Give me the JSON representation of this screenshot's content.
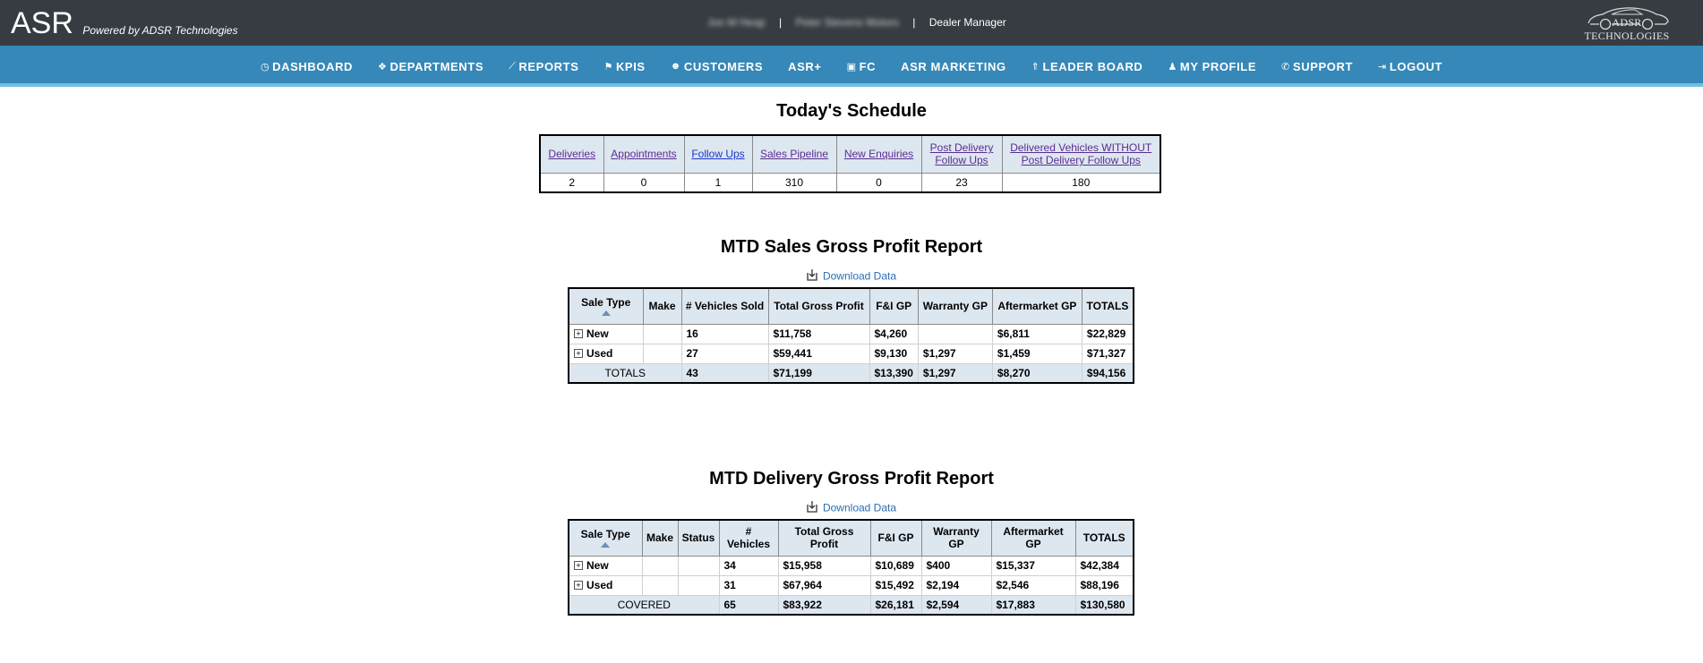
{
  "header": {
    "brand": "ASR",
    "powered_by": "Powered by ADSR Technologies",
    "user_name": "Jon M Heap",
    "dealer_name": "Peter Stevens Motors",
    "separator": "|",
    "role": "Dealer Manager",
    "logo_text": "ADSR TECHNOLOGIES"
  },
  "nav": {
    "items": [
      {
        "label": "DASHBOARD",
        "icon": "dashboard-icon",
        "glyph": "◷"
      },
      {
        "label": "DEPARTMENTS",
        "icon": "cubes-icon",
        "glyph": "❖"
      },
      {
        "label": "REPORTS",
        "icon": "line-chart-icon",
        "glyph": "⟋"
      },
      {
        "label": "KPIS",
        "icon": "flag-icon",
        "glyph": "⚑"
      },
      {
        "label": "CUSTOMERS",
        "icon": "users-icon",
        "glyph": "☻"
      },
      {
        "label": "ASR+",
        "icon": "",
        "glyph": ""
      },
      {
        "label": "FC",
        "icon": "camera-icon",
        "glyph": "▣"
      },
      {
        "label": "ASR MARKETING",
        "icon": "",
        "glyph": ""
      },
      {
        "label": "LEADER BOARD",
        "icon": "thumbtack-icon",
        "glyph": "⇑"
      },
      {
        "label": "MY PROFILE",
        "icon": "user-icon",
        "glyph": "♟"
      },
      {
        "label": "SUPPORT",
        "icon": "phone-icon",
        "glyph": "✆"
      },
      {
        "label": "LOGOUT",
        "icon": "sign-out-icon",
        "glyph": "⇥"
      }
    ]
  },
  "schedule": {
    "title": "Today's Schedule",
    "columns": [
      "Deliveries",
      "Appointments",
      "Follow Ups",
      "Sales Pipeline",
      "New Enquiries",
      "Post Delivery Follow Ups",
      "Delivered Vehicles WITHOUT Post Delivery Follow Ups"
    ],
    "values": [
      "2",
      "0",
      "1",
      "310",
      "0",
      "23",
      "180"
    ]
  },
  "sales_report": {
    "title": "MTD Sales Gross Profit Report",
    "download_label": "Download Data",
    "headers": [
      "Sale Type",
      "Make",
      "# Vehicles Sold",
      "Total Gross Profit",
      "F&I GP",
      "Warranty GP",
      "Aftermarket GP",
      "TOTALS"
    ],
    "rows": [
      {
        "type": "New",
        "make": "",
        "vehicles": "16",
        "total_gp": "$11,758",
        "fi_gp": "$4,260",
        "warranty_gp": "",
        "aftermarket_gp": "$6,811",
        "totals": "$22,829"
      },
      {
        "type": "Used",
        "make": "",
        "vehicles": "27",
        "total_gp": "$59,441",
        "fi_gp": "$9,130",
        "warranty_gp": "$1,297",
        "aftermarket_gp": "$1,459",
        "totals": "$71,327"
      }
    ],
    "total_row": {
      "label": "TOTALS",
      "vehicles": "43",
      "total_gp": "$71,199",
      "fi_gp": "$13,390",
      "warranty_gp": "$1,297",
      "aftermarket_gp": "$8,270",
      "totals": "$94,156"
    }
  },
  "delivery_report": {
    "title": "MTD Delivery Gross Profit Report",
    "download_label": "Download Data",
    "headers": [
      "Sale Type",
      "Make",
      "Status",
      "# Vehicles",
      "Total Gross Profit",
      "F&I GP",
      "Warranty GP",
      "Aftermarket GP",
      "TOTALS"
    ],
    "rows": [
      {
        "type": "New",
        "make": "",
        "status": "",
        "vehicles": "34",
        "total_gp": "$15,958",
        "fi_gp": "$10,689",
        "warranty_gp": "$400",
        "aftermarket_gp": "$15,337",
        "totals": "$42,384"
      },
      {
        "type": "Used",
        "make": "",
        "status": "",
        "vehicles": "31",
        "total_gp": "$67,964",
        "fi_gp": "$15,492",
        "warranty_gp": "$2,194",
        "aftermarket_gp": "$2,546",
        "totals": "$88,196"
      }
    ],
    "total_row": {
      "label": "COVERED",
      "vehicles": "65",
      "total_gp": "$83,922",
      "fi_gp": "$26,181",
      "warranty_gp": "$2,594",
      "aftermarket_gp": "$17,883",
      "totals": "$130,580"
    }
  },
  "colors": {
    "topbar": "#363c41",
    "navbar": "#3688b8",
    "nav_underline": "#6fbfe4",
    "table_header": "#dde7f0",
    "link": "#5a2d91",
    "download_link": "#2a6db3"
  }
}
